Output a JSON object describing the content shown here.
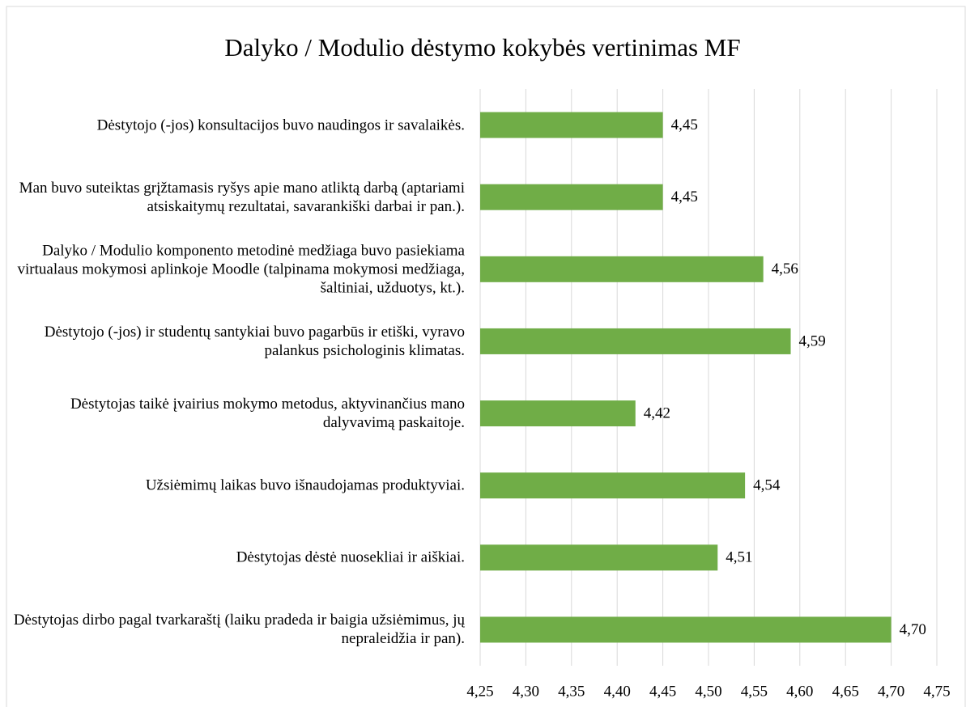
{
  "chart_data": {
    "type": "barh",
    "title": "Dalyko / Modulio dėstymo kokybės vertinimas MF",
    "categories": [
      "Dėstytojo (-jos) konsultacijos buvo naudingos ir savalaikės.",
      "Man buvo suteiktas grįžtamasis ryšys apie mano atliktą darbą (aptariami atsiskaitymų rezultatai, savarankiški darbai ir pan.).",
      "Dalyko / Modulio komponento metodinė medžiaga buvo pasiekiama virtualaus mokymosi aplinkoje Moodle (talpinama mokymosi medžiaga, šaltiniai, užduotys, kt.).",
      "Dėstytojo (-jos) ir studentų santykiai buvo pagarbūs ir etiški, vyravo palankus psichologinis klimatas.",
      "Dėstytojas taikė įvairius mokymo metodus, aktyvinančius mano dalyvavimą paskaitoje.",
      "Užsiėmimų laikas buvo išnaudojamas produktyviai.",
      "Dėstytojas dėstė nuosekliai ir aiškiai.",
      "Dėstytojas dirbo pagal tvarkaraštį (laiku pradeda ir baigia užsiėmimus, jų nepraleidžia ir pan)."
    ],
    "values": [
      4.45,
      4.45,
      4.56,
      4.59,
      4.42,
      4.54,
      4.51,
      4.7
    ],
    "value_labels": [
      "4,45",
      "4,45",
      "4,56",
      "4,59",
      "4,42",
      "4,54",
      "4,51",
      "4,70"
    ],
    "color": "#70ad47",
    "xlim": [
      4.25,
      4.75
    ],
    "xticks": [
      {
        "value": 4.25,
        "label": "4,25"
      },
      {
        "value": 4.3,
        "label": "4,30"
      },
      {
        "value": 4.35,
        "label": "4,35"
      },
      {
        "value": 4.4,
        "label": "4,40"
      },
      {
        "value": 4.45,
        "label": "4,45"
      },
      {
        "value": 4.5,
        "label": "4,50"
      },
      {
        "value": 4.55,
        "label": "4,55"
      },
      {
        "value": 4.6,
        "label": "4,60"
      },
      {
        "value": 4.65,
        "label": "4,65"
      },
      {
        "value": 4.7,
        "label": "4,70"
      },
      {
        "value": 4.75,
        "label": "4,75"
      }
    ],
    "grid": true
  }
}
